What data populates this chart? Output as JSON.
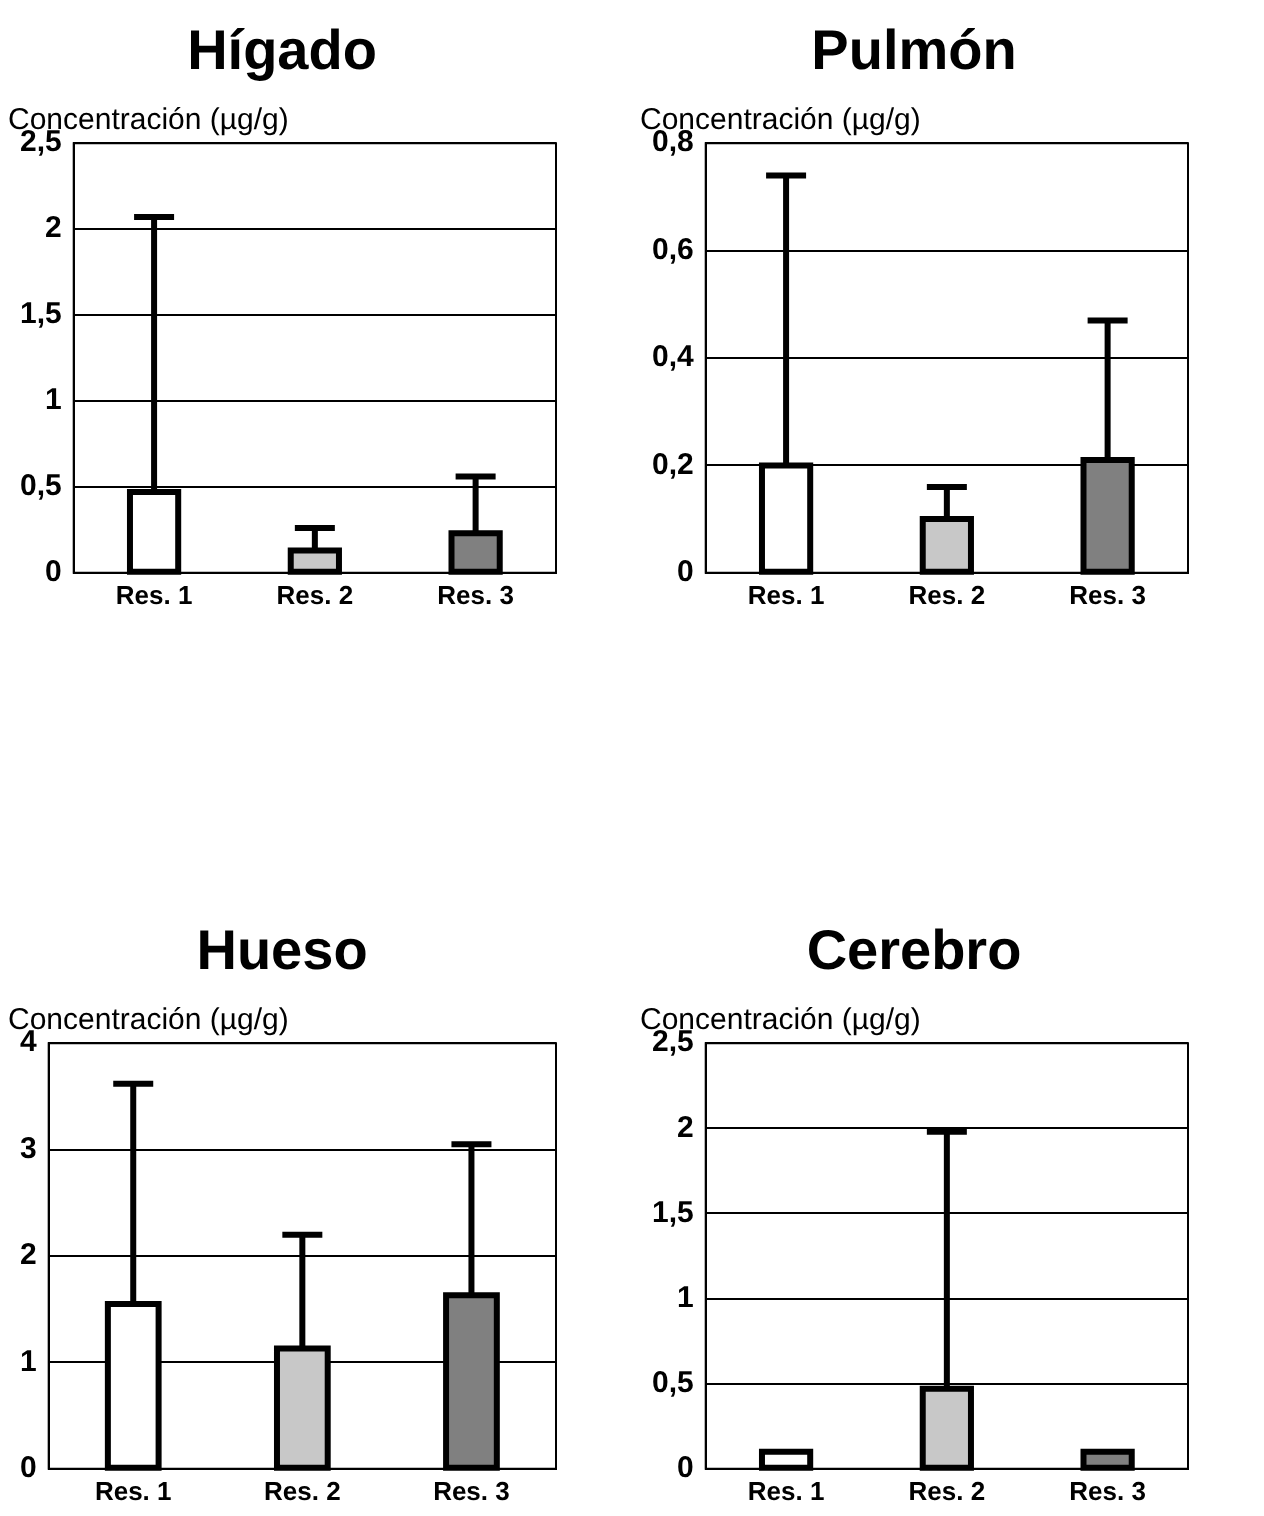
{
  "chart_data": [
    {
      "type": "bar",
      "title": "Hígado",
      "ylabel": "Concentración (µg/g)",
      "categories": [
        "Res. 1",
        "Res. 2",
        "Res. 3"
      ],
      "values": [
        0.47,
        0.13,
        0.23
      ],
      "errors": [
        [
          0.47,
          2.07
        ],
        [
          0.13,
          0.26
        ],
        [
          0.23,
          0.56
        ]
      ],
      "colors": [
        "#ffffff",
        "#c8c8c8",
        "#808080"
      ],
      "ylim": [
        0,
        2.5
      ],
      "yticks": [
        0,
        {
          "value": 0.5,
          "label": "0,5"
        },
        1,
        {
          "value": 1.5,
          "label": "1,5"
        },
        2,
        {
          "value": 2.5,
          "label": "2,5"
        }
      ],
      "grid": "y",
      "legend": false
    },
    {
      "type": "bar",
      "title": "Pulmón",
      "ylabel": "Concentración (µg/g)",
      "categories": [
        "Res. 1",
        "Res. 2",
        "Res. 3"
      ],
      "values": [
        0.2,
        0.1,
        0.21
      ],
      "errors": [
        [
          0.2,
          0.74
        ],
        [
          0.1,
          0.16
        ],
        [
          0.21,
          0.47
        ]
      ],
      "colors": [
        "#ffffff",
        "#c8c8c8",
        "#808080"
      ],
      "ylim": [
        0,
        0.8
      ],
      "yticks": [
        0,
        {
          "value": 0.2,
          "label": "0,2"
        },
        {
          "value": 0.4,
          "label": "0,4"
        },
        {
          "value": 0.6,
          "label": "0,6"
        },
        {
          "value": 0.8,
          "label": "0,8"
        }
      ],
      "grid": "y",
      "legend": false
    },
    {
      "type": "bar",
      "title": "Hueso",
      "ylabel": "Concentración (µg/g)",
      "categories": [
        "Res. 1",
        "Res. 2",
        "Res. 3"
      ],
      "values": [
        1.55,
        1.13,
        1.63
      ],
      "errors": [
        [
          1.55,
          3.62
        ],
        [
          1.13,
          2.2
        ],
        [
          1.63,
          3.05
        ]
      ],
      "colors": [
        "#ffffff",
        "#c8c8c8",
        "#808080"
      ],
      "ylim": [
        0,
        4
      ],
      "yticks": [
        0,
        1,
        2,
        3,
        4
      ],
      "grid": "y",
      "legend": false
    },
    {
      "type": "bar",
      "title": "Cerebro",
      "ylabel": "Concentración (µg/g)",
      "categories": [
        "Res. 1",
        "Res. 2",
        "Res. 3"
      ],
      "values": [
        0.1,
        0.47,
        0.1
      ],
      "errors": [
        null,
        [
          0.47,
          1.98
        ],
        null
      ],
      "colors": [
        "#ffffff",
        "#c8c8c8",
        "#808080"
      ],
      "ylim": [
        0,
        2.5
      ],
      "yticks": [
        0,
        {
          "value": 0.5,
          "label": "0,5"
        },
        1,
        {
          "value": 1.5,
          "label": "1,5"
        },
        2,
        {
          "value": 2.5,
          "label": "2,5"
        }
      ],
      "grid": "y",
      "legend": false
    }
  ]
}
